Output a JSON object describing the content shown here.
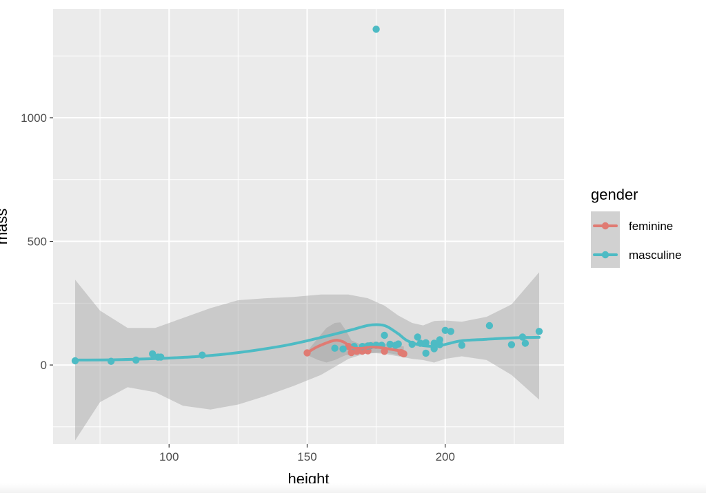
{
  "chart_data": {
    "type": "scatter",
    "xlabel": "height",
    "ylabel": "mass",
    "xlim": [
      58,
      243
    ],
    "ylim": [
      -320,
      1440
    ],
    "xticks": [
      100,
      150,
      200
    ],
    "yticks": [
      0,
      500,
      1000
    ],
    "x_minor": [
      75,
      125,
      175,
      225
    ],
    "y_minor": [
      -250,
      250,
      750,
      1250
    ],
    "grid": true,
    "legend": {
      "title": "gender",
      "position": "right"
    },
    "series": [
      {
        "name": "feminine",
        "color": "#e07b73",
        "points": [
          [
            150,
            49
          ],
          [
            165,
            75
          ],
          [
            166,
            50
          ],
          [
            168,
            55
          ],
          [
            170,
            56
          ],
          [
            172,
            57
          ],
          [
            178,
            55
          ],
          [
            184,
            50
          ],
          [
            185,
            45
          ]
        ],
        "smooth": [
          [
            150,
            49
          ],
          [
            153,
            70
          ],
          [
            156,
            85
          ],
          [
            159,
            97
          ],
          [
            161,
            100
          ],
          [
            163,
            94
          ],
          [
            165,
            80
          ],
          [
            167,
            68
          ],
          [
            170,
            68
          ],
          [
            173,
            72
          ],
          [
            176,
            71
          ],
          [
            179,
            66
          ],
          [
            182,
            60
          ],
          [
            185,
            55
          ]
        ],
        "band_upper": [
          [
            150,
            55
          ],
          [
            154,
            110
          ],
          [
            157,
            150
          ],
          [
            160,
            170
          ],
          [
            162,
            172
          ],
          [
            164,
            140
          ],
          [
            166,
            100
          ],
          [
            169,
            85
          ],
          [
            172,
            92
          ],
          [
            175,
            95
          ],
          [
            178,
            86
          ],
          [
            181,
            80
          ],
          [
            185,
            75
          ]
        ],
        "band_lower": [
          [
            185,
            35
          ],
          [
            181,
            45
          ],
          [
            178,
            50
          ],
          [
            175,
            50
          ],
          [
            172,
            45
          ],
          [
            169,
            45
          ],
          [
            166,
            40
          ],
          [
            164,
            40
          ],
          [
            162,
            30
          ],
          [
            160,
            20
          ],
          [
            157,
            10
          ],
          [
            154,
            20
          ],
          [
            150,
            40
          ]
        ]
      },
      {
        "name": "masculine",
        "color": "#4dbbc4",
        "points": [
          [
            66,
            17
          ],
          [
            79,
            15
          ],
          [
            88,
            20
          ],
          [
            94,
            45
          ],
          [
            96,
            32
          ],
          [
            97,
            32
          ],
          [
            112,
            40
          ],
          [
            160,
            68
          ],
          [
            163,
            65
          ],
          [
            167,
            75
          ],
          [
            170,
            75
          ],
          [
            172,
            77
          ],
          [
            173,
            78
          ],
          [
            175,
            1358
          ],
          [
            175,
            80
          ],
          [
            177,
            80
          ],
          [
            178,
            120
          ],
          [
            180,
            84
          ],
          [
            182,
            80
          ],
          [
            183,
            85
          ],
          [
            188,
            84
          ],
          [
            190,
            113
          ],
          [
            191,
            88
          ],
          [
            193,
            48
          ],
          [
            193,
            90
          ],
          [
            196,
            66
          ],
          [
            196,
            88
          ],
          [
            198,
            82
          ],
          [
            198,
            102
          ],
          [
            200,
            140
          ],
          [
            202,
            136
          ],
          [
            206,
            80
          ],
          [
            216,
            159
          ],
          [
            224,
            82
          ],
          [
            228,
            113
          ],
          [
            229,
            88
          ],
          [
            234,
            136
          ]
        ],
        "smooth": [
          [
            66,
            20
          ],
          [
            80,
            21
          ],
          [
            95,
            26
          ],
          [
            110,
            34
          ],
          [
            125,
            50
          ],
          [
            140,
            75
          ],
          [
            150,
            98
          ],
          [
            160,
            125
          ],
          [
            167,
            145
          ],
          [
            172,
            160
          ],
          [
            176,
            163
          ],
          [
            179,
            155
          ],
          [
            183,
            126
          ],
          [
            186,
            100
          ],
          [
            190,
            83
          ],
          [
            194,
            76
          ],
          [
            198,
            78
          ],
          [
            201,
            86
          ],
          [
            206,
            98
          ],
          [
            215,
            104
          ],
          [
            225,
            110
          ],
          [
            234,
            112
          ]
        ],
        "band_upper": [
          [
            66,
            345
          ],
          [
            75,
            220
          ],
          [
            85,
            150
          ],
          [
            95,
            150
          ],
          [
            105,
            190
          ],
          [
            115,
            230
          ],
          [
            125,
            262
          ],
          [
            135,
            270
          ],
          [
            145,
            275
          ],
          [
            155,
            285
          ],
          [
            165,
            285
          ],
          [
            172,
            270
          ],
          [
            178,
            240
          ],
          [
            183,
            200
          ],
          [
            188,
            170
          ],
          [
            192,
            160
          ],
          [
            196,
            178
          ],
          [
            200,
            180
          ],
          [
            206,
            175
          ],
          [
            215,
            195
          ],
          [
            224,
            245
          ],
          [
            234,
            375
          ]
        ],
        "band_lower": [
          [
            234,
            -140
          ],
          [
            224,
            -40
          ],
          [
            215,
            20
          ],
          [
            206,
            35
          ],
          [
            200,
            25
          ],
          [
            196,
            10
          ],
          [
            192,
            20
          ],
          [
            188,
            25
          ],
          [
            183,
            35
          ],
          [
            178,
            45
          ],
          [
            172,
            50
          ],
          [
            165,
            25
          ],
          [
            155,
            -40
          ],
          [
            145,
            -85
          ],
          [
            135,
            -125
          ],
          [
            125,
            -160
          ],
          [
            115,
            -180
          ],
          [
            105,
            -165
          ],
          [
            95,
            -110
          ],
          [
            85,
            -90
          ],
          [
            75,
            -150
          ],
          [
            66,
            -305
          ]
        ]
      }
    ]
  }
}
